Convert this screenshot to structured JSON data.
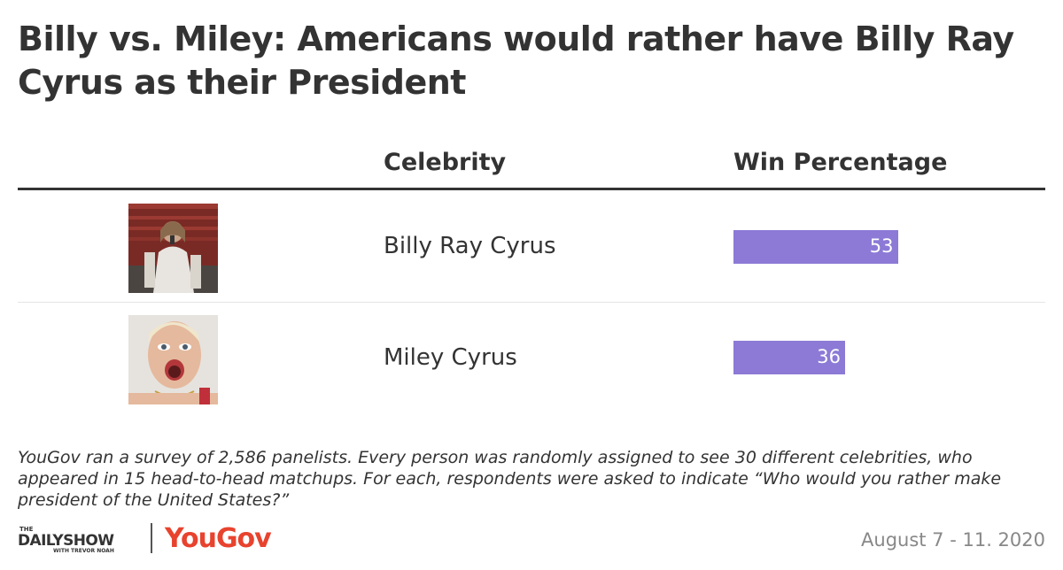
{
  "title": "Billy vs. Miley: Americans would rather have Billy Ray Cyrus as their President",
  "columns": {
    "celebrity": "Celebrity",
    "win": "Win Percentage"
  },
  "chart_data": {
    "type": "bar",
    "title": "Billy vs. Miley: Americans would rather have Billy Ray Cyrus as their President",
    "categories": [
      "Billy Ray Cyrus",
      "Miley Cyrus"
    ],
    "series": [
      {
        "name": "Win Percentage",
        "values": [
          53,
          36
        ]
      }
    ],
    "xlim": [
      0,
      100
    ],
    "bar_color": "#8c7ad6",
    "grid": false
  },
  "rows": [
    {
      "name": "Billy Ray Cyrus",
      "value": "53"
    },
    {
      "name": "Miley Cyrus",
      "value": "36"
    }
  ],
  "note": "YouGov ran a survey of 2,586 panelists. Every person was randomly assigned to see 30 different celebrities, who appeared in 15 head-to-head matchups. For each, respondents were asked to indicate “Who would you rather make president of the United States?”",
  "footer": {
    "logo_daily_small": "THE",
    "logo_daily_main": "DAILYSHOW",
    "logo_daily_sub": "WITH TREVOR NOAH",
    "logo_yougov": "YouGov",
    "date": "August 7 - 11. 2020"
  },
  "colors": {
    "bar": "#8c7ad6",
    "yougov": "#e8432e",
    "text": "#333333"
  }
}
